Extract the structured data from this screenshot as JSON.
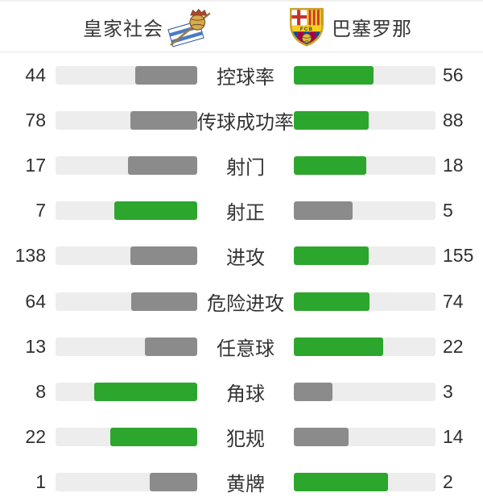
{
  "header": {
    "home": {
      "name": "皇家社会",
      "badge_icon": "real-sociedad-crest"
    },
    "away": {
      "name": "巴塞罗那",
      "badge_icon": "fc-barcelona-crest"
    }
  },
  "colors": {
    "green": "#2ca62c",
    "gray": "#8b8b8b",
    "track": "#ededed",
    "divider": "#e7e7e7",
    "text": "#333333"
  },
  "stats": {
    "rows": [
      {
        "label": "控球率",
        "home": 44,
        "away": 56
      },
      {
        "label": "传球成功率",
        "home": 78,
        "away": 88
      },
      {
        "label": "射门",
        "home": 17,
        "away": 18
      },
      {
        "label": "射正",
        "home": 7,
        "away": 5
      },
      {
        "label": "进攻",
        "home": 138,
        "away": 155
      },
      {
        "label": "危险进攻",
        "home": 64,
        "away": 74
      },
      {
        "label": "任意球",
        "home": 13,
        "away": 22
      },
      {
        "label": "角球",
        "home": 8,
        "away": 3
      },
      {
        "label": "犯规",
        "home": 22,
        "away": 14
      },
      {
        "label": "黄牌",
        "home": 1,
        "away": 2
      }
    ]
  },
  "chart_data": {
    "type": "bar",
    "orientation": "horizontal-paired",
    "categories": [
      "控球率",
      "传球成功率",
      "射门",
      "射正",
      "进攻",
      "危险进攻",
      "任意球",
      "角球",
      "犯规",
      "黄牌"
    ],
    "series": [
      {
        "name": "皇家社会",
        "values": [
          44,
          78,
          17,
          7,
          138,
          64,
          13,
          8,
          22,
          1
        ]
      },
      {
        "name": "巴塞罗那",
        "values": [
          56,
          88,
          18,
          5,
          155,
          74,
          22,
          3,
          14,
          2
        ]
      }
    ],
    "value_rule": "bar fill fraction = value / (home + away); higher value colored green, lower gray",
    "legend_position": "top-header-with-badges",
    "grid": false
  }
}
